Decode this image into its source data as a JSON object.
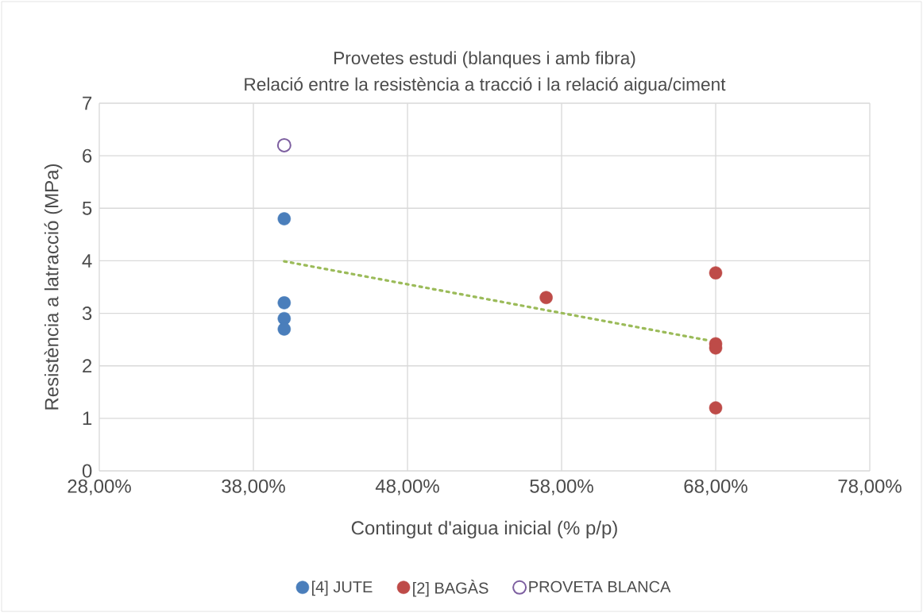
{
  "chart_data": {
    "type": "scatter",
    "title": "Provetes estudi (blanques i amb fibra)",
    "subtitle": "Relació entre la resistència a tracció i la relació aigua/ciment",
    "xlabel": "Contingut d'aigua inicial (% p/p)",
    "ylabel": "Resistència a latracció (MPa)",
    "xlim": [
      28,
      78
    ],
    "xticks": [
      {
        "value": 28,
        "label": "28,00%"
      },
      {
        "value": 38,
        "label": "38,00%"
      },
      {
        "value": 48,
        "label": "48,00%"
      },
      {
        "value": 58,
        "label": "58,00%"
      },
      {
        "value": 68,
        "label": "68,00%"
      },
      {
        "value": 78,
        "label": "78,00%"
      }
    ],
    "ylim": [
      0,
      7
    ],
    "yticks": [
      0,
      1,
      2,
      3,
      4,
      5,
      6,
      7
    ],
    "grid": true,
    "legend": "bottom",
    "series": [
      {
        "name": "[4] JUTE",
        "color": "#4a7ebb",
        "x": [
          40,
          40,
          40,
          40
        ],
        "values": [
          4.8,
          3.2,
          2.9,
          2.7
        ],
        "marker": "circle"
      },
      {
        "name": "[2] BAGÀS",
        "color": "#be4b48",
        "x": [
          57,
          68,
          68,
          68,
          68
        ],
        "values": [
          3.3,
          3.77,
          2.42,
          2.34,
          1.2
        ],
        "marker": "circle"
      },
      {
        "name": "PROVETA BLANCA",
        "color": "#7d5fa0",
        "x": [
          40
        ],
        "values": [
          6.2
        ],
        "marker": "open circle"
      },
      {
        "type": "line",
        "color": "#9bbb59",
        "x": [
          40,
          67.6
        ],
        "values": [
          3.99,
          2.48
        ],
        "marker": "none",
        "line_style": "dotted"
      }
    ]
  }
}
